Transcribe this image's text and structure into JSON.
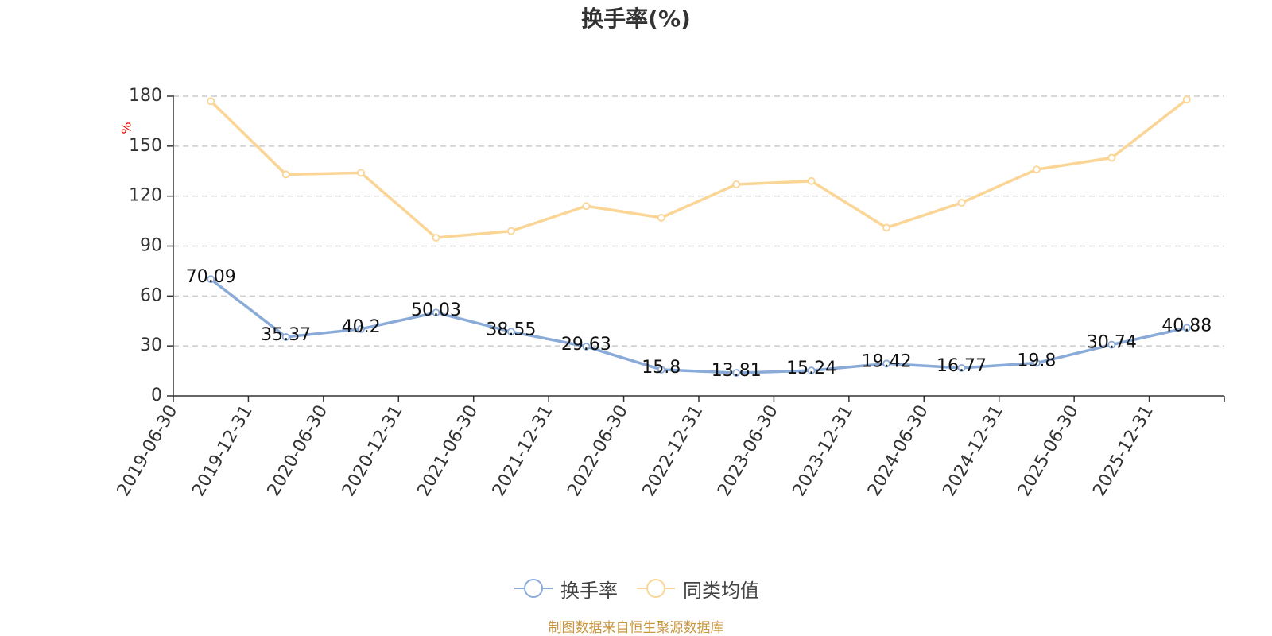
{
  "title": "换手率(%)",
  "source": "制图数据来自恒生聚源数据库",
  "colors": {
    "series_0": "#8aaad8",
    "series_1": "#fad595",
    "grid": "#cccccc",
    "axis": "#333333",
    "unit": "#e60000",
    "source": "#c8963c"
  },
  "chart_data": {
    "type": "line",
    "title": "换手率(%)",
    "ylabel": "%",
    "xlabel": "",
    "ylim": [
      0,
      180
    ],
    "yticks": [
      0,
      30,
      60,
      90,
      120,
      150,
      180
    ],
    "grid": true,
    "legend_position": "bottom",
    "categories": [
      "2019-06-30",
      "2019-12-31",
      "2020-06-30",
      "2020-12-31",
      "2021-06-30",
      "2021-12-31",
      "2022-06-30",
      "2022-12-31",
      "2023-06-30",
      "2023-12-31",
      "2024-06-30",
      "2024-12-31",
      "2025-06-30",
      "2025-12-31"
    ],
    "series": [
      {
        "name": "换手率",
        "values": [
          70.09,
          35.37,
          40.2,
          50.03,
          38.55,
          29.63,
          15.8,
          13.81,
          15.24,
          19.42,
          16.77,
          19.8,
          30.74,
          40.88
        ],
        "labels": [
          "70.09",
          "35.37",
          "40.2",
          "50.03",
          "38.55",
          "29.63",
          "15.8",
          "13.81",
          "15.24",
          "19.42",
          "16.77",
          "19.8",
          "30.74",
          "40.88"
        ]
      },
      {
        "name": "同类均值",
        "values": [
          177,
          133,
          134,
          95,
          99,
          114,
          107,
          127,
          129,
          101,
          116,
          136,
          143,
          178
        ]
      }
    ]
  }
}
